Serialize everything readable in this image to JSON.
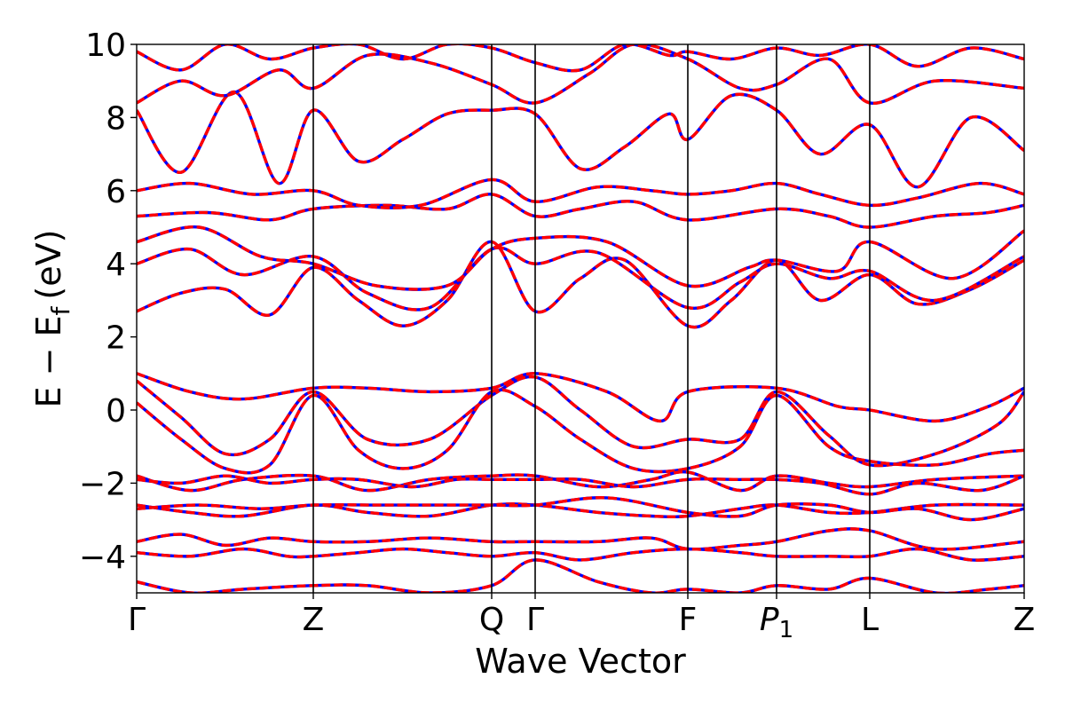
{
  "chart_data": {
    "type": "line",
    "title": "",
    "xlabel": "Wave Vector",
    "ylabel": "E − E_f (eV)",
    "ylabel_parts": {
      "main": "E − E",
      "sub": "f",
      "unit": "(eV)"
    },
    "ylim": [
      -5,
      10
    ],
    "yticks": [
      -4,
      -2,
      0,
      2,
      4,
      6,
      8,
      10
    ],
    "ytick_labels": [
      "−4",
      "−2",
      "0",
      "2",
      "4",
      "6",
      "8",
      "10"
    ],
    "xlim": [
      0,
      1
    ],
    "kpoints": [
      {
        "label": "Γ",
        "x": 0.0
      },
      {
        "label": "Z",
        "x": 0.199
      },
      {
        "label": "Q",
        "x": 0.4
      },
      {
        "label": "Γ",
        "x": 0.449
      },
      {
        "label": "F",
        "x": 0.621
      },
      {
        "label": "P",
        "sub": "1",
        "x": 0.721
      },
      {
        "label": "L",
        "x": 0.826
      },
      {
        "label": "Z",
        "x": 1.0
      }
    ],
    "legend": "none",
    "grid": false,
    "colors": {
      "overlay": "#ff0000",
      "base": "#0000ff",
      "axis": "#000000"
    },
    "series": [
      {
        "x": [
          0,
          0.05,
          0.1,
          0.15,
          0.199,
          0.25,
          0.3,
          0.35,
          0.4,
          0.449,
          0.5,
          0.55,
          0.621,
          0.67,
          0.721,
          0.77,
          0.826,
          0.88,
          0.94,
          1.0
        ],
        "y": [
          2.7,
          3.2,
          3.3,
          2.6,
          3.9,
          3.0,
          2.3,
          3.0,
          4.6,
          2.7,
          3.6,
          4.1,
          2.3,
          3.0,
          4.1,
          3.0,
          3.7,
          2.9,
          3.3,
          4.1
        ]
      },
      {
        "x": [
          0,
          0.06,
          0.12,
          0.199,
          0.26,
          0.33,
          0.4,
          0.449,
          0.52,
          0.621,
          0.68,
          0.721,
          0.78,
          0.826,
          0.9,
          1.0
        ],
        "y": [
          4.0,
          4.4,
          3.7,
          4.2,
          3.2,
          2.8,
          4.4,
          4.0,
          4.3,
          2.8,
          3.5,
          4.0,
          3.6,
          3.8,
          3.0,
          4.2
        ]
      },
      {
        "x": [
          0,
          0.07,
          0.14,
          0.199,
          0.27,
          0.35,
          0.4,
          0.449,
          0.53,
          0.621,
          0.69,
          0.721,
          0.79,
          0.826,
          0.92,
          1.0
        ],
        "y": [
          4.6,
          5.0,
          4.2,
          4.0,
          3.4,
          3.4,
          4.4,
          4.7,
          4.6,
          3.4,
          3.9,
          4.1,
          3.8,
          4.6,
          3.6,
          4.9
        ]
      },
      {
        "x": [
          0,
          0.08,
          0.15,
          0.199,
          0.28,
          0.35,
          0.4,
          0.449,
          0.5,
          0.56,
          0.621,
          0.721,
          0.78,
          0.826,
          0.9,
          0.96,
          1.0
        ],
        "y": [
          5.3,
          5.4,
          5.2,
          5.5,
          5.6,
          5.5,
          5.9,
          5.3,
          5.5,
          5.7,
          5.2,
          5.5,
          5.3,
          5.0,
          5.3,
          5.4,
          5.6
        ]
      },
      {
        "x": [
          0,
          0.06,
          0.13,
          0.199,
          0.25,
          0.32,
          0.4,
          0.449,
          0.52,
          0.58,
          0.621,
          0.67,
          0.721,
          0.77,
          0.826,
          0.88,
          0.95,
          1.0
        ],
        "y": [
          6.0,
          6.2,
          5.9,
          6.0,
          5.6,
          5.6,
          6.3,
          5.7,
          6.1,
          6.0,
          5.9,
          6.0,
          6.2,
          5.9,
          5.6,
          5.8,
          6.2,
          5.9
        ]
      },
      {
        "x": [
          0,
          0.05,
          0.11,
          0.16,
          0.199,
          0.25,
          0.3,
          0.35,
          0.4,
          0.449,
          0.5,
          0.55,
          0.6,
          0.621,
          0.67,
          0.721,
          0.77,
          0.826,
          0.88,
          0.94,
          1.0
        ],
        "y": [
          8.2,
          6.5,
          8.7,
          6.2,
          8.2,
          6.8,
          7.4,
          8.1,
          8.2,
          8.1,
          6.6,
          7.2,
          8.1,
          7.4,
          8.6,
          8.2,
          7.0,
          7.8,
          6.1,
          8.0,
          7.1
        ]
      },
      {
        "x": [
          0,
          0.05,
          0.1,
          0.16,
          0.199,
          0.26,
          0.33,
          0.4,
          0.449,
          0.51,
          0.56,
          0.621,
          0.68,
          0.721,
          0.78,
          0.826,
          0.9,
          1.0
        ],
        "y": [
          8.4,
          9.0,
          8.6,
          9.3,
          8.8,
          9.7,
          9.5,
          8.9,
          8.4,
          9.2,
          10.0,
          9.6,
          8.8,
          8.9,
          9.6,
          8.4,
          9.0,
          8.8
        ]
      },
      {
        "x": [
          0,
          0.05,
          0.1,
          0.15,
          0.199,
          0.25,
          0.3,
          0.35,
          0.4,
          0.449,
          0.5,
          0.55,
          0.6,
          0.621,
          0.67,
          0.721,
          0.77,
          0.826,
          0.88,
          0.94,
          1.0
        ],
        "y": [
          9.8,
          9.3,
          10.0,
          9.6,
          9.9,
          10.0,
          9.6,
          10.0,
          9.9,
          9.5,
          9.3,
          10.0,
          9.7,
          9.8,
          9.6,
          9.9,
          9.7,
          10.0,
          9.4,
          9.9,
          9.6
        ]
      },
      {
        "x": [
          0,
          0.06,
          0.12,
          0.199,
          0.26,
          0.33,
          0.4,
          0.449,
          0.53,
          0.59,
          0.621,
          0.721,
          0.79,
          0.826,
          0.9,
          0.96,
          1.0
        ],
        "y": [
          1.0,
          0.5,
          0.3,
          0.6,
          0.6,
          0.5,
          0.6,
          1.0,
          0.5,
          -0.3,
          0.5,
          0.6,
          0.1,
          0.0,
          -0.3,
          0.1,
          0.6
        ]
      },
      {
        "x": [
          0,
          0.05,
          0.1,
          0.15,
          0.199,
          0.26,
          0.33,
          0.4,
          0.449,
          0.5,
          0.56,
          0.621,
          0.68,
          0.721,
          0.78,
          0.826,
          0.9,
          0.97,
          1.0
        ],
        "y": [
          0.8,
          -0.2,
          -1.2,
          -0.8,
          0.5,
          -0.8,
          -0.8,
          0.4,
          0.9,
          0.0,
          -1.0,
          -0.8,
          -0.8,
          0.5,
          -0.7,
          -1.5,
          -1.2,
          -0.4,
          0.5
        ]
      },
      {
        "x": [
          0,
          0.05,
          0.1,
          0.15,
          0.199,
          0.25,
          0.3,
          0.35,
          0.4,
          0.449,
          0.5,
          0.56,
          0.621,
          0.68,
          0.721,
          0.78,
          0.826,
          0.9,
          0.96,
          1.0
        ],
        "y": [
          0.2,
          -0.8,
          -1.6,
          -1.5,
          0.4,
          -1.1,
          -1.6,
          -1.1,
          0.5,
          0.1,
          -0.8,
          -1.6,
          -1.6,
          -1.0,
          0.4,
          -1.0,
          -1.4,
          -1.5,
          -1.2,
          -1.1
        ]
      },
      {
        "x": [
          0,
          0.06,
          0.12,
          0.199,
          0.26,
          0.33,
          0.4,
          0.449,
          0.52,
          0.58,
          0.621,
          0.68,
          0.721,
          0.78,
          0.826,
          0.9,
          1.0
        ],
        "y": [
          -1.8,
          -2.2,
          -1.9,
          -1.8,
          -2.2,
          -1.9,
          -1.8,
          -1.8,
          -2.1,
          -1.9,
          -1.7,
          -2.2,
          -1.8,
          -2.0,
          -2.1,
          -1.9,
          -1.8
        ]
      },
      {
        "x": [
          0,
          0.05,
          0.1,
          0.15,
          0.199,
          0.25,
          0.31,
          0.36,
          0.4,
          0.449,
          0.5,
          0.56,
          0.621,
          0.68,
          0.721,
          0.77,
          0.826,
          0.88,
          0.95,
          1.0
        ],
        "y": [
          -1.9,
          -2.0,
          -1.8,
          -2.0,
          -1.9,
          -1.9,
          -2.1,
          -1.9,
          -1.9,
          -1.9,
          -1.9,
          -2.1,
          -1.9,
          -1.9,
          -1.9,
          -2.0,
          -2.3,
          -2.0,
          -2.2,
          -1.8
        ]
      },
      {
        "x": [
          0,
          0.06,
          0.12,
          0.199,
          0.26,
          0.33,
          0.4,
          0.449,
          0.52,
          0.58,
          0.621,
          0.68,
          0.721,
          0.78,
          0.826,
          0.9,
          1.0
        ],
        "y": [
          -2.6,
          -2.8,
          -2.9,
          -2.6,
          -2.8,
          -2.9,
          -2.6,
          -2.6,
          -2.8,
          -2.9,
          -2.9,
          -2.7,
          -2.6,
          -2.8,
          -2.8,
          -2.6,
          -2.6
        ]
      },
      {
        "x": [
          0,
          0.07,
          0.14,
          0.199,
          0.28,
          0.35,
          0.4,
          0.449,
          0.53,
          0.621,
          0.68,
          0.721,
          0.78,
          0.826,
          0.88,
          0.94,
          1.0
        ],
        "y": [
          -2.7,
          -2.6,
          -2.7,
          -2.6,
          -2.6,
          -2.6,
          -2.6,
          -2.6,
          -2.4,
          -2.8,
          -2.9,
          -2.6,
          -2.6,
          -2.8,
          -2.7,
          -3.0,
          -2.7
        ]
      },
      {
        "x": [
          0,
          0.05,
          0.1,
          0.15,
          0.199,
          0.26,
          0.33,
          0.4,
          0.449,
          0.52,
          0.58,
          0.621,
          0.68,
          0.721,
          0.78,
          0.826,
          0.9,
          1.0
        ],
        "y": [
          -3.6,
          -3.4,
          -3.7,
          -3.5,
          -3.6,
          -3.6,
          -3.5,
          -3.6,
          -3.6,
          -3.6,
          -3.5,
          -3.8,
          -3.7,
          -3.6,
          -3.3,
          -3.3,
          -3.8,
          -3.6
        ]
      },
      {
        "x": [
          0,
          0.06,
          0.12,
          0.17,
          0.199,
          0.25,
          0.3,
          0.35,
          0.4,
          0.449,
          0.5,
          0.56,
          0.621,
          0.68,
          0.721,
          0.78,
          0.826,
          0.88,
          0.94,
          1.0
        ],
        "y": [
          -3.9,
          -4.0,
          -3.8,
          -4.0,
          -4.0,
          -3.9,
          -3.8,
          -3.9,
          -4.0,
          -3.9,
          -4.1,
          -3.9,
          -3.8,
          -3.9,
          -4.0,
          -4.0,
          -4.0,
          -3.8,
          -4.1,
          -4.0
        ]
      },
      {
        "x": [
          0,
          0.06,
          0.12,
          0.199,
          0.26,
          0.33,
          0.4,
          0.449,
          0.52,
          0.58,
          0.621,
          0.68,
          0.721,
          0.78,
          0.826,
          0.9,
          0.96,
          1.0
        ],
        "y": [
          -4.7,
          -5.0,
          -4.9,
          -4.8,
          -4.8,
          -5.0,
          -4.8,
          -4.1,
          -4.7,
          -5.0,
          -4.9,
          -5.0,
          -4.8,
          -4.9,
          -4.6,
          -5.0,
          -4.9,
          -4.8
        ]
      }
    ]
  }
}
